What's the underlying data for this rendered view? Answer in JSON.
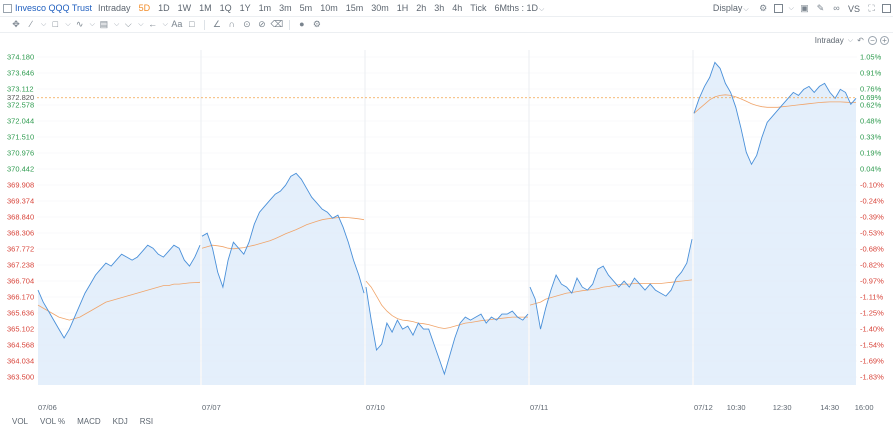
{
  "toolbar": {
    "symbol": "Invesco QQQ Trust",
    "timeframes": [
      "Intraday",
      "5D",
      "1D",
      "1W",
      "1M",
      "1Q",
      "1Y",
      "1m",
      "3m",
      "5m",
      "10m",
      "15m",
      "30m",
      "1H",
      "2h",
      "3h",
      "4h",
      "Tick",
      "6Mths : 1D"
    ],
    "active_timeframe": "5D",
    "display_label": "Display"
  },
  "chart_header": {
    "mode_label": "Intraday"
  },
  "indicators": [
    "VOL",
    "VOL %",
    "MACD",
    "KDJ",
    "RSI"
  ],
  "colors": {
    "price_line": "#4a90d9",
    "area_fill": "#dbe9f9",
    "ma_line": "#f0a46a",
    "current_line": "#f2a34a",
    "up": "#2e9b4f",
    "down": "#d8443a",
    "active": "#f28c28"
  },
  "chart_data": {
    "type": "line",
    "title": "",
    "xlabel": "",
    "ylabel": "",
    "ylim": [
      363.1,
      374.45
    ],
    "y_tick_labels": [
      "374.180",
      "373.646",
      "373.112",
      "372.578",
      "372.044",
      "371.510",
      "370.976",
      "370.442",
      "369.908",
      "369.374",
      "368.840",
      "368.306",
      "367.772",
      "367.238",
      "366.704",
      "366.170",
      "365.636",
      "365.102",
      "364.568",
      "364.034",
      "363.500"
    ],
    "percent_tick_labels": [
      "1.05%",
      "0.91%",
      "0.76%",
      "0.62%",
      "0.48%",
      "0.33%",
      "0.19%",
      "0.04%",
      "-0.10%",
      "-0.24%",
      "-0.39%",
      "-0.53%",
      "-0.68%",
      "-0.82%",
      "-0.97%",
      "-1.11%",
      "-1.25%",
      "-1.40%",
      "-1.54%",
      "-1.69%",
      "-1.83%"
    ],
    "current_price_label": "372.820",
    "current_percent_label": "0.69%",
    "reference_price": 370.3,
    "x_tick_labels": [
      "07/06",
      "07/07",
      "07/10",
      "07/11",
      "07/12",
      "10:30",
      "12:30",
      "14:30",
      "16:00"
    ],
    "sessions": [
      {
        "date": "07/06",
        "price": [
          366.4,
          366.0,
          365.7,
          365.4,
          365.1,
          364.8,
          365.1,
          365.5,
          365.9,
          366.3,
          366.6,
          366.9,
          367.1,
          367.3,
          367.2,
          367.4,
          367.6,
          367.5,
          367.4,
          367.5,
          367.7,
          367.9,
          367.8,
          367.6,
          367.5,
          367.7,
          367.9,
          367.8,
          367.4,
          367.2,
          367.5,
          367.9
        ],
        "ma": [
          365.9,
          365.8,
          365.7,
          365.6,
          365.5,
          365.45,
          365.4,
          365.45,
          365.5,
          365.6,
          365.7,
          365.8,
          365.9,
          366.0,
          366.05,
          366.1,
          366.15,
          366.2,
          366.25,
          366.3,
          366.35,
          366.4,
          366.45,
          366.5,
          366.55,
          366.55,
          366.6,
          366.6,
          366.62,
          366.64,
          366.65,
          366.66
        ]
      },
      {
        "date": "07/07",
        "price": [
          368.2,
          368.3,
          367.8,
          367.0,
          366.5,
          367.4,
          368.0,
          367.8,
          367.6,
          368.0,
          368.6,
          369.0,
          369.2,
          369.4,
          369.6,
          369.7,
          369.9,
          370.2,
          370.3,
          370.1,
          369.8,
          369.5,
          369.3,
          369.1,
          369.0,
          368.8,
          368.9,
          368.5,
          368.0,
          367.4,
          366.9,
          366.3
        ],
        "ma": [
          367.8,
          367.85,
          367.9,
          367.88,
          367.85,
          367.8,
          367.78,
          367.8,
          367.82,
          367.86,
          367.9,
          367.95,
          368.0,
          368.05,
          368.12,
          368.2,
          368.28,
          368.35,
          368.42,
          368.5,
          368.58,
          368.64,
          368.7,
          368.75,
          368.78,
          368.8,
          368.82,
          368.83,
          368.82,
          368.8,
          368.78,
          368.75
        ]
      },
      {
        "date": "07/10",
        "price": [
          366.5,
          365.4,
          364.4,
          364.6,
          365.3,
          365.0,
          365.4,
          365.1,
          365.2,
          364.9,
          365.3,
          365.1,
          365.1,
          364.6,
          364.1,
          363.6,
          364.2,
          364.8,
          365.3,
          365.5,
          365.4,
          365.5,
          365.6,
          365.3,
          365.5,
          365.4,
          365.6,
          365.6,
          365.7,
          365.5,
          365.4,
          365.6
        ],
        "ma": [
          366.7,
          366.5,
          366.2,
          365.9,
          365.7,
          365.55,
          365.45,
          365.4,
          365.38,
          365.35,
          365.3,
          365.28,
          365.25,
          365.2,
          365.15,
          365.12,
          365.15,
          365.2,
          365.25,
          365.3,
          365.32,
          365.35,
          365.38,
          365.4,
          365.42,
          365.44,
          365.46,
          365.48,
          365.5,
          365.5,
          365.5,
          365.5
        ]
      },
      {
        "date": "07/11",
        "price": [
          366.5,
          366.1,
          365.1,
          365.8,
          366.4,
          366.9,
          366.6,
          366.5,
          366.3,
          366.8,
          366.5,
          366.4,
          366.6,
          367.1,
          367.2,
          366.9,
          366.7,
          366.5,
          366.7,
          366.5,
          366.8,
          366.6,
          366.4,
          366.6,
          366.4,
          366.3,
          366.2,
          366.4,
          366.8,
          367.0,
          367.3,
          368.1
        ],
        "ma": [
          365.9,
          365.95,
          366.0,
          366.1,
          366.15,
          366.2,
          366.25,
          366.3,
          366.32,
          366.35,
          366.38,
          366.4,
          366.42,
          366.45,
          366.5,
          366.52,
          366.55,
          366.58,
          366.6,
          366.6,
          366.62,
          366.62,
          366.62,
          366.62,
          366.62,
          366.62,
          366.64,
          366.66,
          366.68,
          366.7,
          366.72,
          366.74
        ]
      },
      {
        "date": "07/12",
        "price": [
          372.3,
          372.8,
          373.2,
          373.5,
          374.0,
          373.8,
          373.3,
          373.0,
          372.5,
          371.8,
          371.0,
          370.6,
          370.9,
          371.5,
          372.0,
          372.2,
          372.4,
          372.6,
          372.8,
          373.0,
          372.9,
          373.1,
          373.2,
          373.0,
          373.2,
          373.3,
          373.0,
          372.8,
          373.1,
          373.0,
          372.6,
          372.8
        ],
        "ma": [
          372.3,
          372.45,
          372.6,
          372.75,
          372.85,
          372.9,
          372.92,
          372.9,
          372.85,
          372.78,
          372.7,
          372.62,
          372.56,
          372.52,
          372.5,
          372.5,
          372.5,
          372.52,
          372.54,
          372.56,
          372.58,
          372.6,
          372.62,
          372.64,
          372.66,
          372.67,
          372.68,
          372.68,
          372.68,
          372.67,
          372.66,
          372.66
        ]
      }
    ]
  }
}
